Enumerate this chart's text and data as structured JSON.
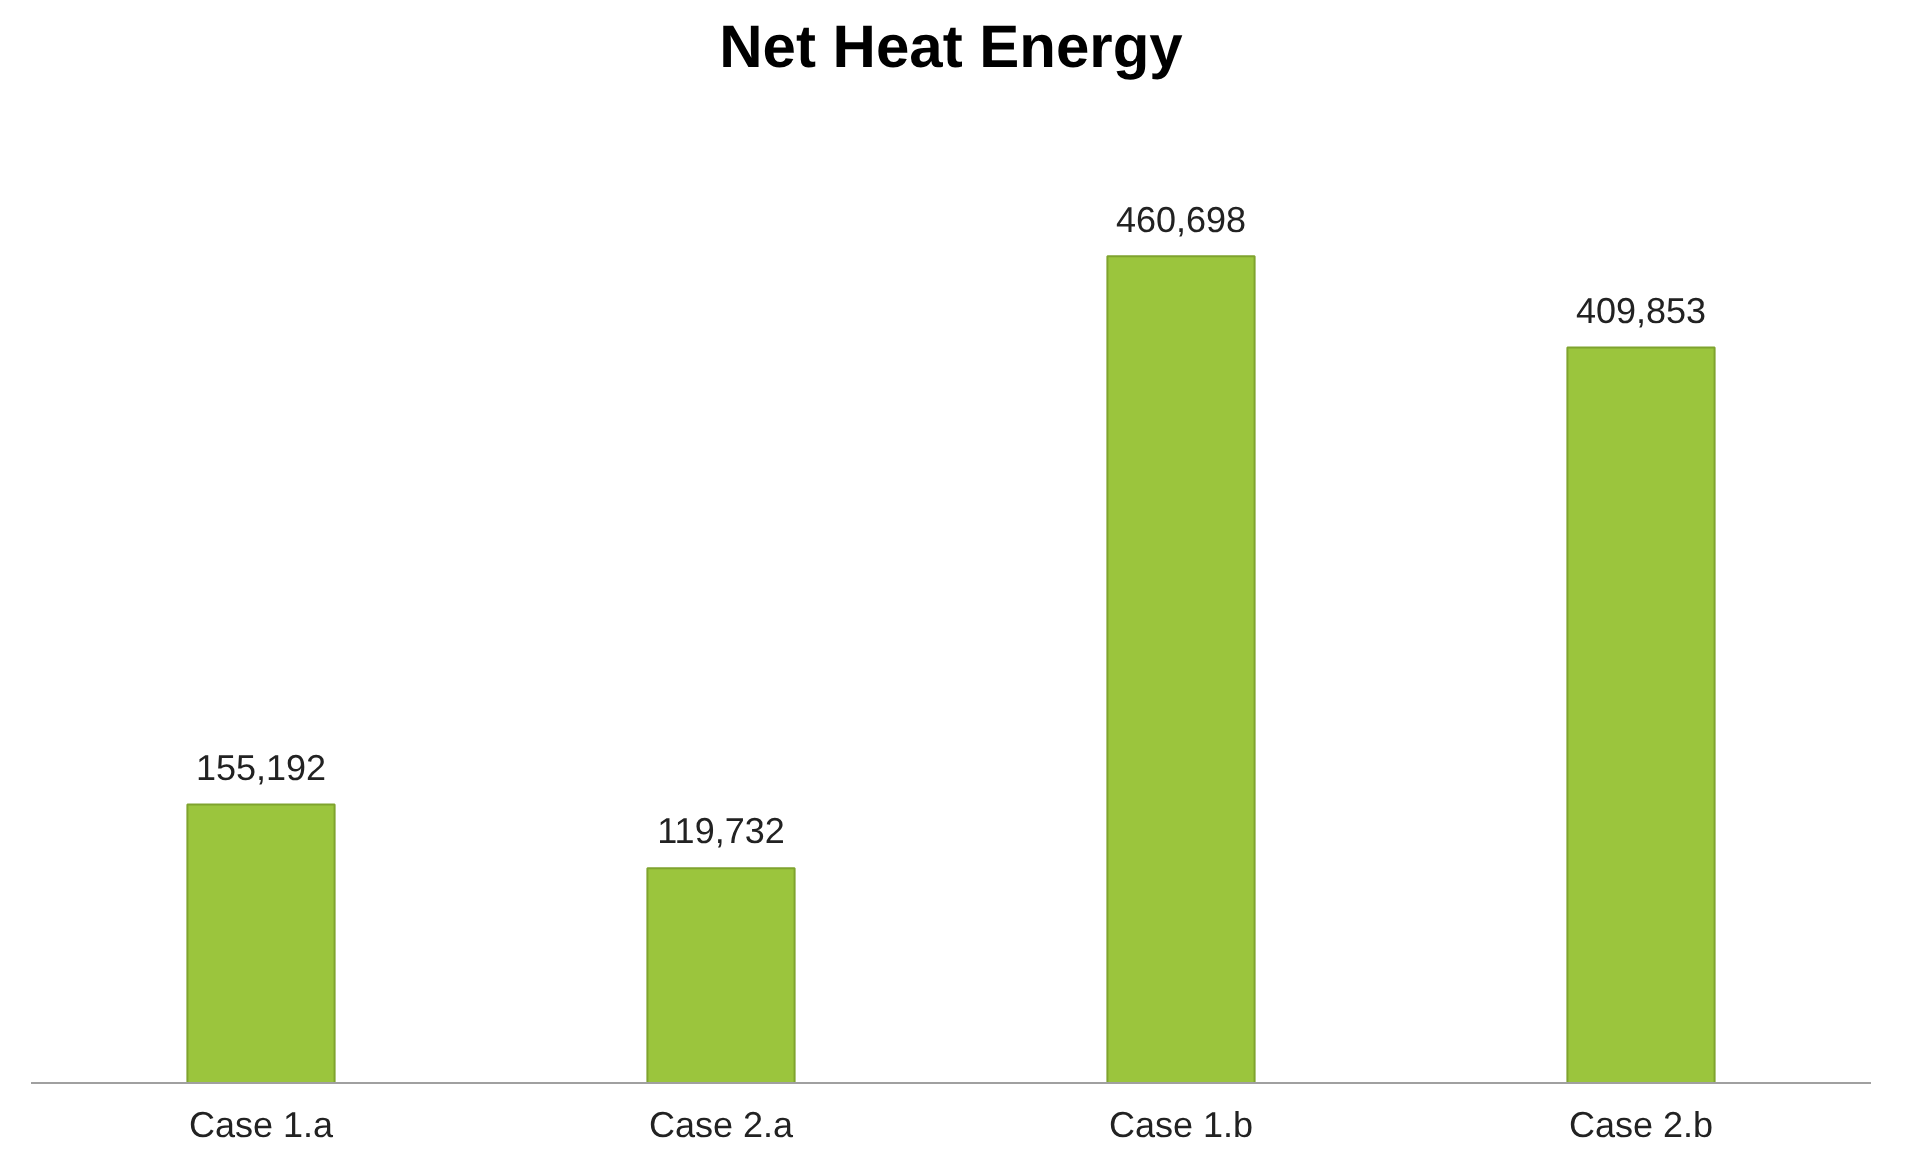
{
  "chart_data": {
    "type": "bar",
    "title": "Net Heat Energy",
    "categories": [
      "Case 1.a",
      "Case 2.a",
      "Case 1.b",
      "Case 2.b"
    ],
    "values": [
      155192,
      119732,
      460698,
      409853
    ],
    "color": "#9bc53d",
    "value_labels": [
      "155,192",
      "119,732",
      "460,698",
      "409,853"
    ]
  }
}
